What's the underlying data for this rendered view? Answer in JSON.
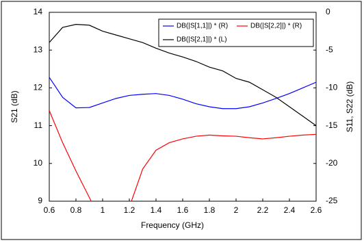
{
  "chart_data": {
    "type": "line",
    "x": [
      0.6,
      0.7,
      0.8,
      0.9,
      1.0,
      1.1,
      1.2,
      1.3,
      1.4,
      1.5,
      1.6,
      1.7,
      1.8,
      1.9,
      2.0,
      2.1,
      2.2,
      2.3,
      2.4,
      2.5,
      2.6
    ],
    "xlabel": "Frequency (GHz)",
    "ylabel": "S21 (dB)",
    "y2label": "S11, S22 (dB)",
    "xlim": [
      0.6,
      2.6
    ],
    "xticks": [
      0.6,
      0.8,
      1,
      1.2,
      1.4,
      1.6,
      1.8,
      2,
      2.2,
      2.4,
      2.6
    ],
    "ylim": [
      9,
      14
    ],
    "yticks": [
      9,
      10,
      11,
      12,
      13,
      14
    ],
    "y2lim": [
      -25,
      0
    ],
    "y2ticks": [
      -25,
      -20,
      -15,
      -10,
      -5,
      0
    ],
    "series": [
      {
        "name": "DB(|S[1,1]|) * (R)",
        "color": "#0000ff",
        "axis": "y2",
        "values": [
          -8.6,
          -11.25,
          -12.65,
          -12.6,
          -12,
          -11.4,
          -11,
          -10.85,
          -10.75,
          -11,
          -11.5,
          -12.1,
          -12.5,
          -12.75,
          -12.75,
          -12.5,
          -12,
          -11.4,
          -10.75,
          -10,
          -9.25
        ]
      },
      {
        "name": "DB(|S[2,2]|) * (R)",
        "color": "#ff0000",
        "axis": "y2",
        "values": [
          -13,
          -17.25,
          -21,
          -24.5,
          -28,
          -28,
          -25.8,
          -20.75,
          -18.25,
          -17.25,
          -16.75,
          -16.4,
          -16.25,
          -16.35,
          -16.4,
          -16.6,
          -16.75,
          -16.6,
          -16.4,
          -16.25,
          -16.15
        ]
      },
      {
        "name": "DB(|S[2,1]|) * (L)",
        "color": "#000000",
        "values": [
          13.2,
          13.6,
          13.68,
          13.66,
          13.5,
          13.4,
          13.3,
          13.2,
          13.05,
          12.92,
          12.82,
          12.7,
          12.55,
          12.45,
          12.25,
          12.15,
          11.95,
          11.75,
          11.5,
          11.25,
          11.0
        ]
      }
    ]
  }
}
